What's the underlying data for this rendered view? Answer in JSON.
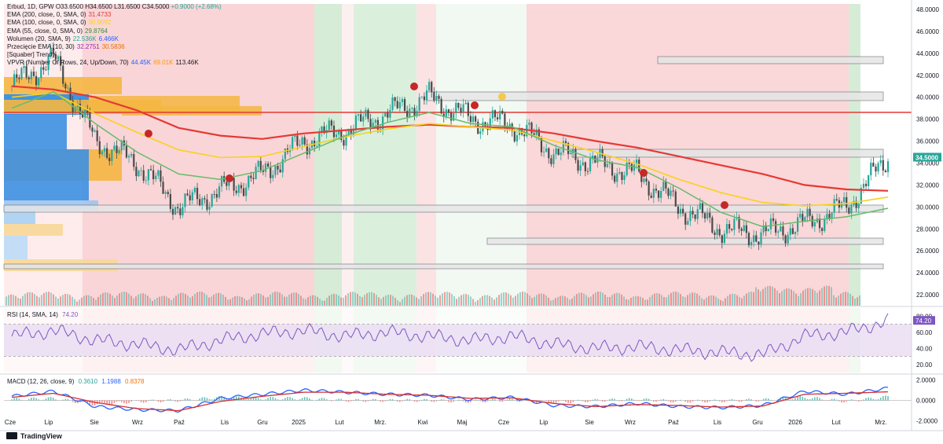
{
  "header": {
    "symbol_line": {
      "name": "Erbud, 1D, GPW",
      "o": "O33.6500",
      "h": "H34.6500",
      "l": "L31.6500",
      "c": "C34.5000",
      "chg": "+0.9000 (+2.68%)"
    },
    "indicators": [
      {
        "label": "EMA (200, close, 0, SMA, 0)",
        "values": [
          "31.4733"
        ],
        "colors": [
          "#e53935"
        ]
      },
      {
        "label": "EMA (100, close, 0, SMA, 0)",
        "values": [
          "30.9092"
        ],
        "colors": [
          "#f7d21e"
        ]
      },
      {
        "label": "EMA (55, close, 0, SMA, 0)",
        "values": [
          "29.8764"
        ],
        "colors": [
          "#388e3c"
        ]
      },
      {
        "label": "Wolumen (20, SMA, 9)",
        "values": [
          "22.536K",
          "6.466K"
        ],
        "colors": [
          "#26a69a",
          "#2962ff"
        ]
      },
      {
        "label": "Przecięcie EMA (10, 30)",
        "values": [
          "32.2751",
          "30.5836"
        ],
        "colors": [
          "#9c27b0",
          "#ef6c00"
        ]
      },
      {
        "label": "[Squaber] Trendy",
        "values": [],
        "colors": []
      },
      {
        "label": "VPVR (Number Of Rows, 24, Up/Down, 70)",
        "values": [
          "44.45K",
          "69.01K",
          "113.46K"
        ],
        "colors": [
          "#2962ff",
          "#ff9800",
          "#131722"
        ]
      }
    ]
  },
  "panes": {
    "rsi": {
      "label": "RSI (14, SMA, 14)",
      "value": "74.20",
      "value_color": "#7e57c2"
    },
    "macd": {
      "label": "MACD (12, 26, close, 9)",
      "values": [
        "0.3610",
        "1.1988",
        "0.8378"
      ],
      "colors": [
        "#26a69a",
        "#2962ff",
        "#ff6d00"
      ]
    }
  },
  "price_axis": {
    "ticks": [
      "48.0000",
      "46.0000",
      "44.0000",
      "42.0000",
      "40.0000",
      "38.0000",
      "36.0000",
      "34.0000",
      "32.0000",
      "30.0000",
      "28.0000",
      "26.0000",
      "24.0000",
      "22.0000"
    ],
    "last_price": "34.5000"
  },
  "rsi_axis": {
    "ticks": [
      "80.00",
      "60.00",
      "40.00",
      "20.00"
    ]
  },
  "macd_axis": {
    "ticks": [
      "2.0000",
      "0.0000",
      "-2.0000"
    ]
  },
  "time_axis": {
    "labels": [
      "Cze",
      "Lip",
      "Sie",
      "Wrz",
      "Paź",
      "Lis",
      "Gru",
      "2025",
      "Lut",
      "Mrz.",
      "Kwi",
      "Maj",
      "Cze",
      "Lip",
      "Sie",
      "Wrz",
      "Paź",
      "Lis",
      "Gru",
      "2026",
      "Lut",
      "Mrz."
    ]
  },
  "footer": {
    "brand": "TradingView"
  },
  "chart_data": {
    "type": "line",
    "title": "Erbud, 1D, GPW",
    "ylim": [
      21,
      48.5
    ],
    "x": [
      "Cze",
      "Lip",
      "Sie",
      "Wrz",
      "Paź",
      "Lis",
      "Gru",
      "2025",
      "Lut",
      "Mrz.",
      "Kwi",
      "Maj",
      "Cze",
      "Lip",
      "Sie",
      "Wrz",
      "Paź",
      "Lis",
      "Gru",
      "2026",
      "Lut",
      "Mrz."
    ],
    "series": [
      {
        "name": "Erbud",
        "values": [
          41,
          43.5,
          36,
          34,
          30,
          31.5,
          33,
          36,
          37,
          38.5,
          40,
          38,
          37.5,
          35,
          34,
          33,
          30,
          28,
          27.5,
          28.5,
          30,
          34.5
        ]
      },
      {
        "name": "EMA (200, close, 0, SMA, 0)",
        "values": [
          41,
          40.7,
          40,
          38.8,
          37.2,
          36.5,
          36.2,
          36.7,
          37,
          37.3,
          37.5,
          37.3,
          37.2,
          36.7,
          36,
          35.4,
          34.6,
          33.8,
          33,
          32,
          31.6,
          31.47
        ]
      },
      {
        "name": "EMA (100, close, 0, SMA, 0)",
        "values": [
          40,
          40.4,
          38.5,
          36.8,
          35.2,
          34.5,
          34.6,
          35.5,
          36.4,
          37.1,
          37.6,
          37.3,
          37,
          36,
          35,
          33.9,
          32.5,
          31.3,
          30.4,
          30.1,
          30.3,
          30.9
        ]
      },
      {
        "name": "EMA (55, close, 0, SMA, 0)",
        "values": [
          39,
          40.5,
          37.6,
          35,
          33,
          32.5,
          33.3,
          34.9,
          36.5,
          37.7,
          38.6,
          37.6,
          37.3,
          35.6,
          34.3,
          33.6,
          31.7,
          29.5,
          28.2,
          28.7,
          29.1,
          29.88
        ]
      }
    ],
    "rsi": {
      "ylim": [
        10,
        90
      ],
      "bands": [
        30,
        70
      ],
      "values": [
        55,
        62,
        50,
        45,
        38,
        50,
        58,
        62,
        55,
        60,
        55,
        50,
        55,
        45,
        40,
        42,
        38,
        35,
        32,
        55,
        60,
        74.2
      ]
    },
    "macd": {
      "ylim": [
        -2.8,
        2.5
      ],
      "macd": [
        0.4,
        0.9,
        -0.6,
        -0.9,
        -1,
        0.2,
        0.6,
        1.0,
        0.8,
        0.6,
        0.5,
        0.1,
        0.3,
        -0.5,
        -0.6,
        -0.3,
        -0.6,
        -0.7,
        -0.5,
        0.9,
        0.6,
        1.2
      ],
      "signal": [
        0.3,
        0.7,
        -0.2,
        -0.8,
        -1,
        -0.1,
        0.4,
        0.8,
        0.8,
        0.6,
        0.5,
        0.2,
        0.25,
        -0.3,
        -0.6,
        -0.4,
        -0.5,
        -0.65,
        -0.55,
        0.6,
        0.7,
        0.84
      ]
    }
  }
}
